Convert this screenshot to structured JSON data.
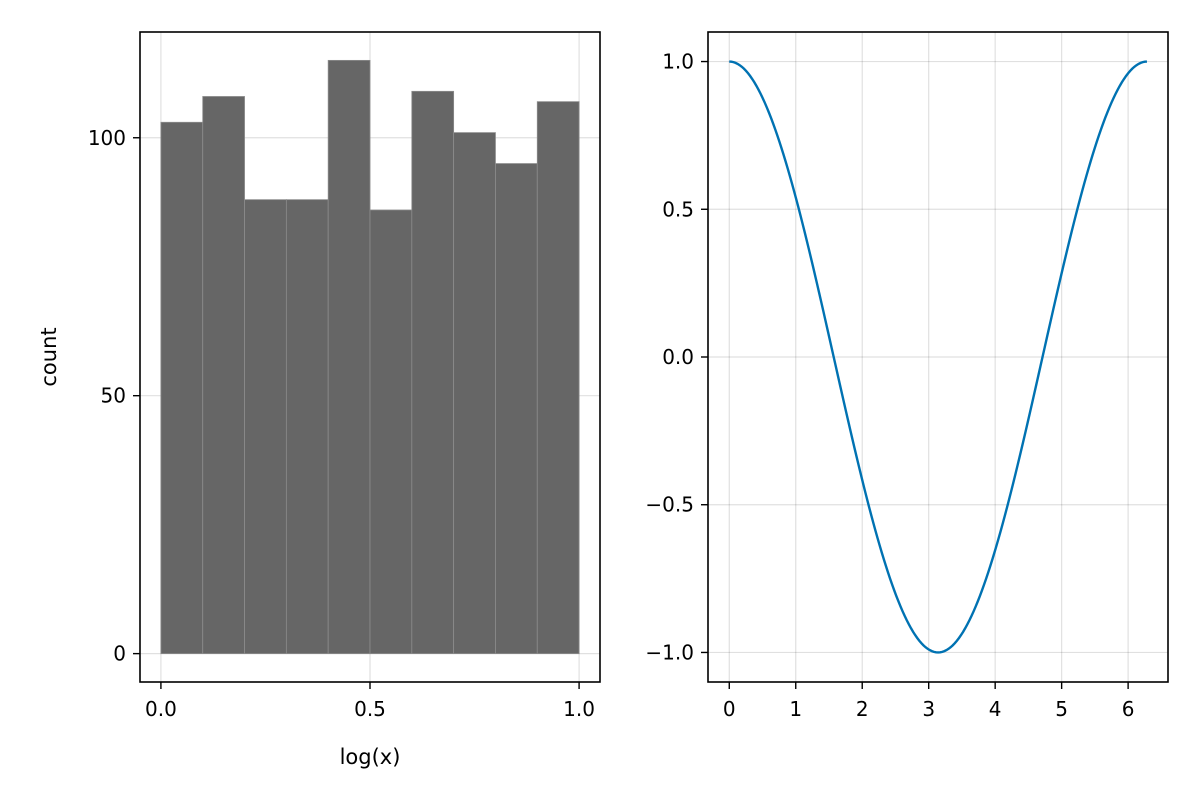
{
  "chart_data": [
    {
      "type": "bar",
      "subtype": "histogram",
      "xlabel": "log(x)",
      "ylabel": "count",
      "xlim": [
        -0.05,
        1.05
      ],
      "ylim": [
        -5.5,
        120.5
      ],
      "xticks": [
        0.0,
        0.5,
        1.0
      ],
      "xtick_labels": [
        "0.0",
        "0.5",
        "1.0"
      ],
      "yticks": [
        0,
        50,
        100
      ],
      "ytick_labels": [
        "0",
        "50",
        "100"
      ],
      "bin_edges": [
        0.0,
        0.1,
        0.2,
        0.3,
        0.4,
        0.5,
        0.6,
        0.7,
        0.8,
        0.9,
        1.0
      ],
      "values": [
        103,
        108,
        88,
        88,
        115,
        86,
        109,
        101,
        95,
        107
      ],
      "grid": true,
      "color": "#666666"
    },
    {
      "type": "line",
      "function": "cos(x)",
      "x_range": [
        0,
        6.2832
      ],
      "xlim": [
        -0.32,
        6.6
      ],
      "ylim": [
        -1.1,
        1.1
      ],
      "xticks": [
        0,
        1,
        2,
        3,
        4,
        5,
        6
      ],
      "xtick_labels": [
        "0",
        "1",
        "2",
        "3",
        "4",
        "5",
        "6"
      ],
      "yticks": [
        1.0,
        0.5,
        0.0,
        -0.5,
        -1.0
      ],
      "ytick_labels": [
        "1.0",
        "0.5",
        "0.0",
        "−0.5",
        "−1.0"
      ],
      "grid": true,
      "color": "#0072b2"
    }
  ]
}
